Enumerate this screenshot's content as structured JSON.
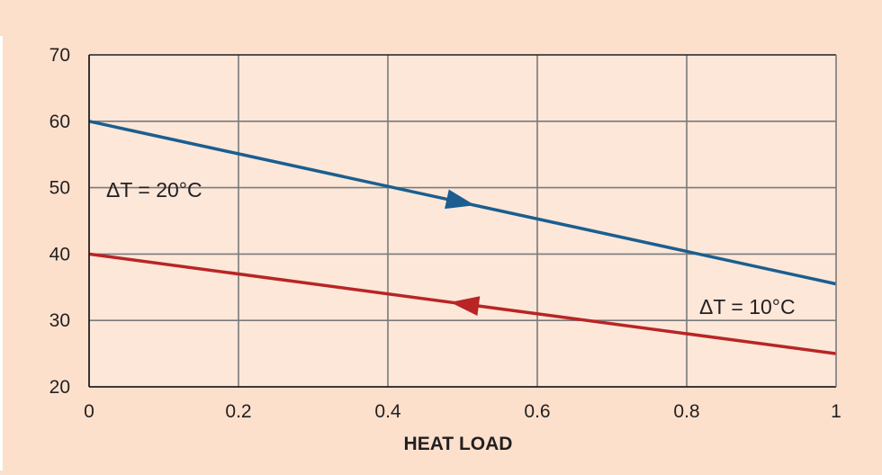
{
  "chart_data": {
    "type": "line",
    "title": "",
    "xlabel": "HEAT LOAD",
    "ylabel": "",
    "xlim": [
      0,
      1
    ],
    "ylim": [
      20,
      70
    ],
    "grid": true,
    "x_ticks": [
      "0",
      "0.2",
      "0.4",
      "0.6",
      "0.8",
      "1"
    ],
    "y_ticks": [
      "20",
      "30",
      "40",
      "50",
      "60",
      "70"
    ],
    "series": [
      {
        "name": "ΔT = 20°C",
        "x": [
          0,
          1
        ],
        "y": [
          60,
          35.5
        ],
        "color": "#1b5e8f",
        "arrow": "right"
      },
      {
        "name": "ΔT = 10°C",
        "x": [
          0,
          1
        ],
        "y": [
          40,
          25
        ],
        "color": "#b82525",
        "arrow": "left"
      }
    ],
    "colors": {
      "background": "#fde0cc",
      "plot_background": "#fce7d9",
      "grid": "#7a7a7a",
      "axis": "#231f20"
    }
  }
}
